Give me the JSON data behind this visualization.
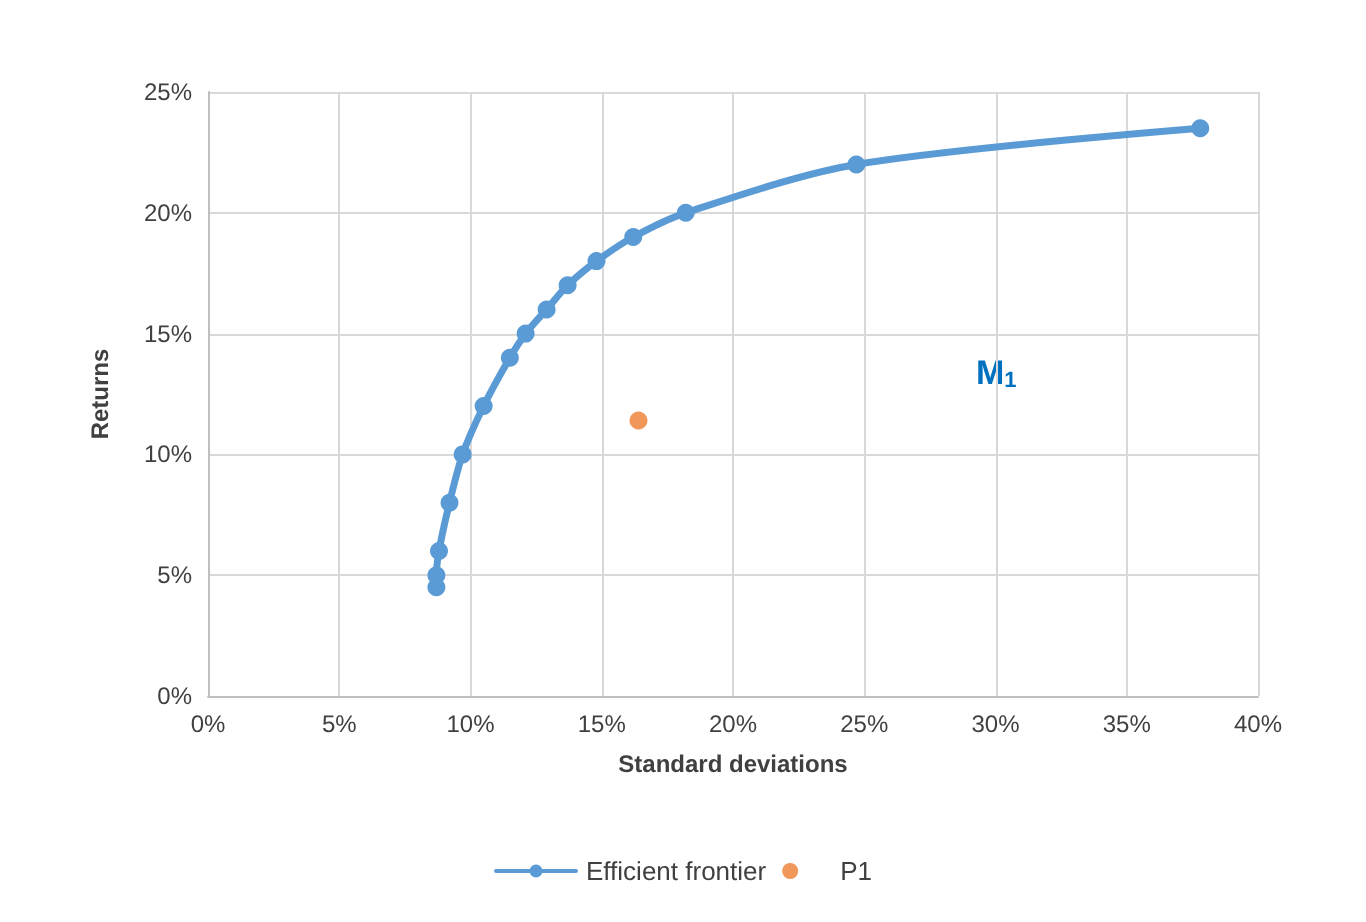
{
  "chart_data": {
    "type": "line",
    "xlabel": "Standard deviations",
    "ylabel": "Returns",
    "series": [
      {
        "name": "Efficient frontier",
        "color": "#5b9bd5",
        "marker": "circle",
        "x": [
          8.7,
          8.7,
          8.8,
          9.2,
          9.7,
          10.5,
          11.5,
          12.1,
          12.9,
          13.7,
          14.8,
          16.2,
          18.2,
          24.7,
          37.8
        ],
        "values": [
          4.5,
          5,
          6,
          8,
          10,
          12,
          14,
          15,
          16,
          17,
          18,
          19,
          20,
          22,
          23.5
        ]
      },
      {
        "name": "P1",
        "type": "scatter",
        "color": "#ed7d31",
        "marker": "circle",
        "x": [
          16.4
        ],
        "values": [
          11.4
        ]
      }
    ],
    "xlim": [
      0,
      40
    ],
    "xticks": [
      {
        "value": 0,
        "label": "0%"
      },
      {
        "value": 5,
        "label": "5%"
      },
      {
        "value": 10,
        "label": "10%"
      },
      {
        "value": 15,
        "label": "15%"
      },
      {
        "value": 20,
        "label": "20%"
      },
      {
        "value": 25,
        "label": "25%"
      },
      {
        "value": 30,
        "label": "30%"
      },
      {
        "value": 35,
        "label": "35%"
      },
      {
        "value": 40,
        "label": "40%"
      }
    ],
    "ylim": [
      0,
      25
    ],
    "yticks": [
      {
        "value": 0,
        "label": "0%"
      },
      {
        "value": 5,
        "label": "5%"
      },
      {
        "value": 10,
        "label": "10%"
      },
      {
        "value": 15,
        "label": "15%"
      },
      {
        "value": 20,
        "label": "20%"
      },
      {
        "value": 25,
        "label": "25%"
      }
    ],
    "annotations": [
      "M$_{1}$"
    ],
    "grid": true,
    "legend": "bottom",
    "line_style": "solid"
  }
}
